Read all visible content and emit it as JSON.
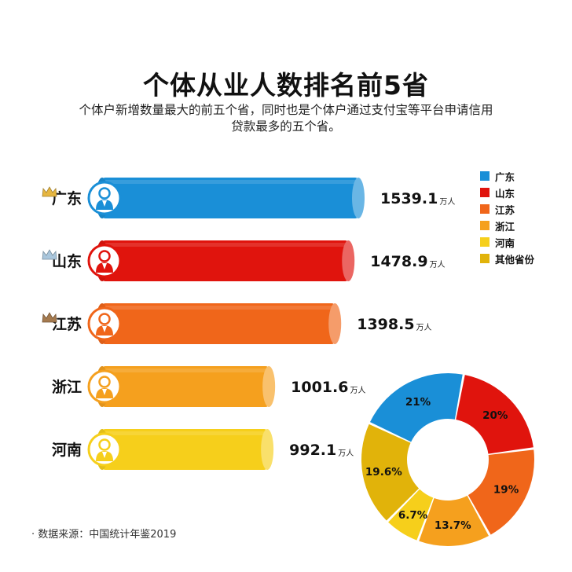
{
  "header": {
    "title": "个体从业人数排名前5省",
    "subtitle_line1": "个体户新增数量最大的前五个省，同时也是个体户通过支付宝等平台申请信用",
    "subtitle_line2": "贷款最多的五个省。"
  },
  "chart_data": [
    {
      "type": "bar",
      "orientation": "horizontal",
      "unit": "万人",
      "categories": [
        "广东",
        "山东",
        "江苏",
        "浙江",
        "河南"
      ],
      "values": [
        1539.1,
        1478.9,
        1398.5,
        1001.6,
        992.1
      ],
      "value_labels": [
        "1539.1",
        "1478.9",
        "1398.5",
        "1001.6",
        "992.1"
      ],
      "colors": [
        "#1a8fd7",
        "#e0140d",
        "#f0661a",
        "#f5a01e",
        "#f6cf1b"
      ],
      "crown_colors": [
        "#e6b640",
        "#a9c6dc",
        "#a57a4e",
        null,
        null
      ]
    },
    {
      "type": "pie",
      "style": "donut",
      "categories": [
        "广东",
        "山东",
        "江苏",
        "浙江",
        "河南",
        "其他省份"
      ],
      "values": [
        21,
        20,
        19,
        13.7,
        6.7,
        19.6
      ],
      "labels": [
        "21%",
        "20%",
        "19%",
        "13.7%",
        "6.7%",
        "19.6%"
      ],
      "colors": [
        "#1a8fd7",
        "#e0140d",
        "#f0661a",
        "#f5a01e",
        "#f6cf1b",
        "#e1b30a"
      ]
    }
  ],
  "legend": {
    "items": [
      {
        "label": "广东",
        "color": "#1a8fd7"
      },
      {
        "label": "山东",
        "color": "#e0140d"
      },
      {
        "label": "江苏",
        "color": "#f0661a"
      },
      {
        "label": "浙江",
        "color": "#f5a01e"
      },
      {
        "label": "河南",
        "color": "#f6cf1b"
      },
      {
        "label": "其他省份",
        "color": "#e1b30a"
      }
    ]
  },
  "footer": {
    "source": "· 数据来源：中国统计年鉴2019"
  }
}
